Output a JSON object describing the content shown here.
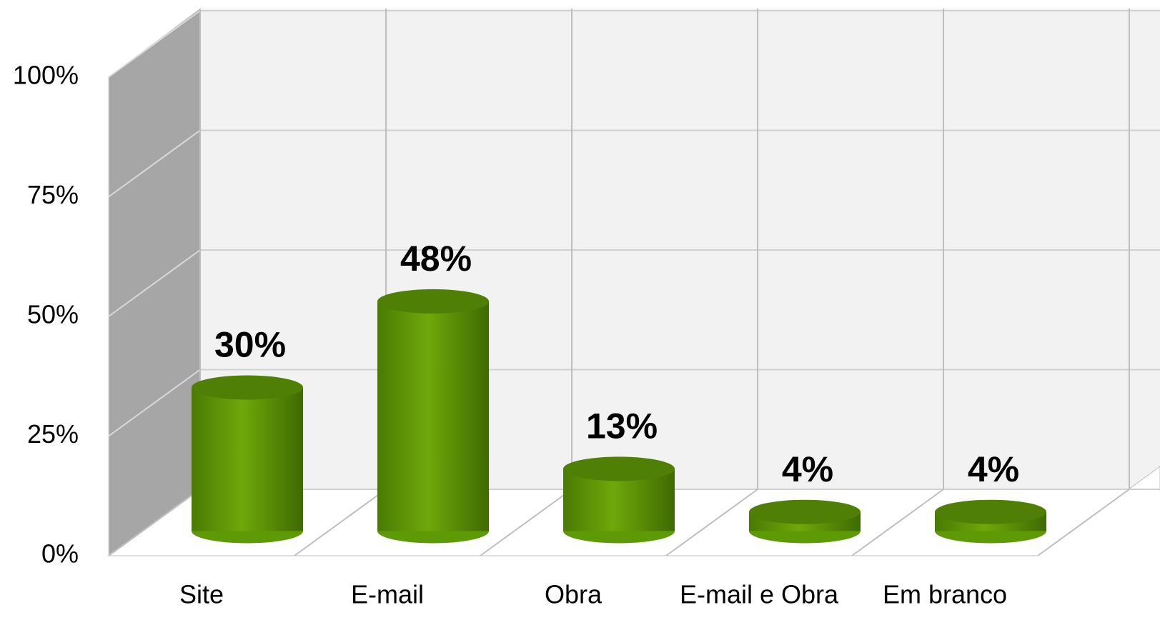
{
  "chart_data": {
    "type": "bar",
    "categories": [
      "Site",
      "E-mail",
      "Obra",
      "E-mail e Obra",
      "Em branco"
    ],
    "values": [
      30,
      48,
      13,
      4,
      4
    ],
    "value_labels": [
      "30%",
      "48%",
      "13%",
      "4%",
      "4%"
    ],
    "color": "#5e9a06",
    "ylim": [
      0,
      100
    ],
    "yticks": [
      {
        "value": 0,
        "label": "0%"
      },
      {
        "value": 25,
        "label": "25%"
      },
      {
        "value": 50,
        "label": "50%"
      },
      {
        "value": 75,
        "label": "75%"
      },
      {
        "value": 100,
        "label": "100%"
      }
    ],
    "grid": true
  }
}
